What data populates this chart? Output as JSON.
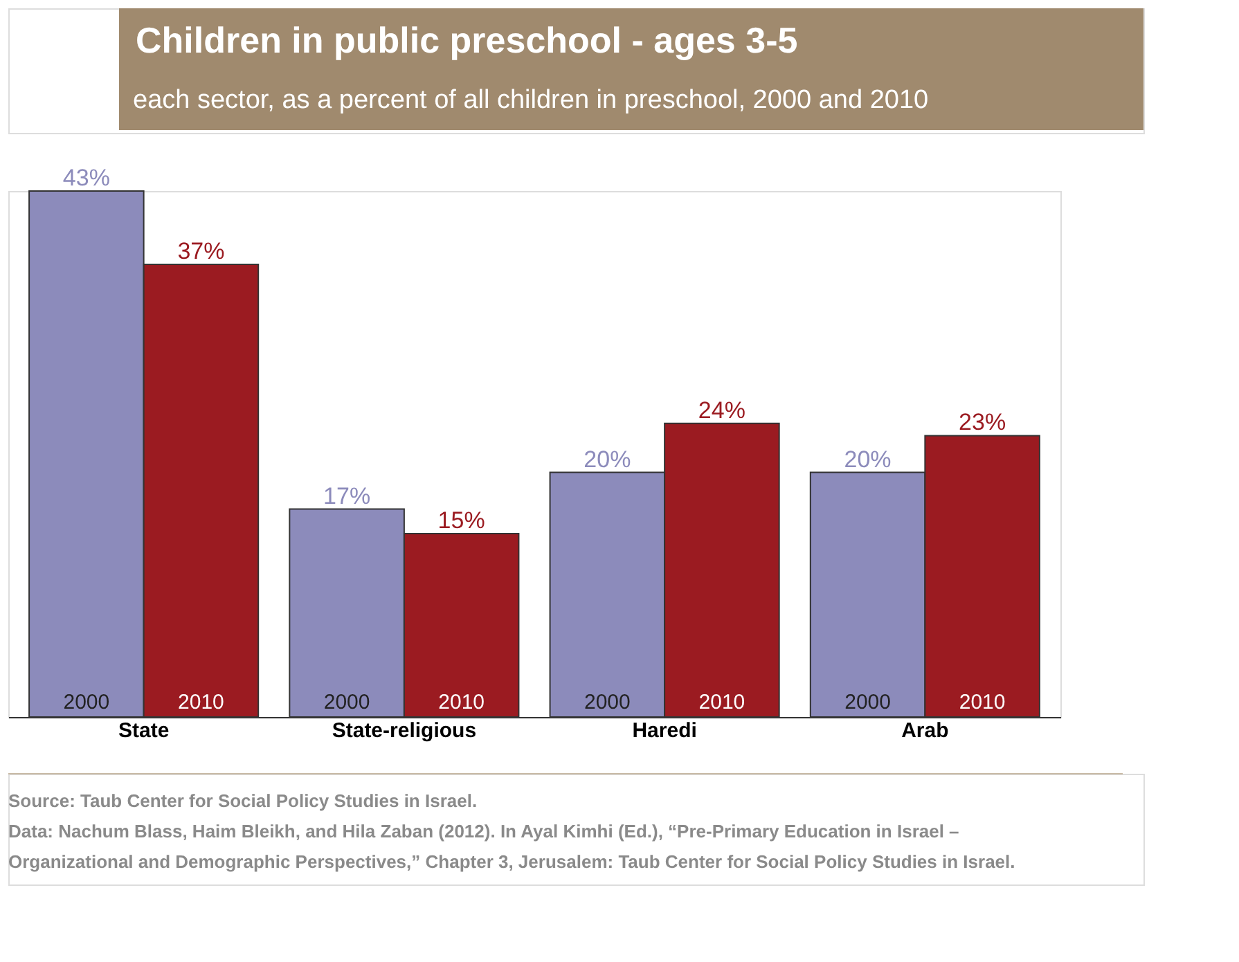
{
  "chart_data": {
    "type": "bar",
    "title": "Children in public preschool - ages 3-5",
    "subtitle": "each sector, as a percent of all children in preschool, 2000 and 2010",
    "categories": [
      "State",
      "State-religious",
      "Haredi",
      "Arab"
    ],
    "series": [
      {
        "name": "2000",
        "color": "#8c8bbb",
        "values": [
          43,
          17,
          20,
          20
        ],
        "value_labels": [
          "43%",
          "17%",
          "20%",
          "20%"
        ]
      },
      {
        "name": "2010",
        "color": "#9b1b21",
        "values": [
          37,
          15,
          24,
          23
        ],
        "value_labels": [
          "37%",
          "15%",
          "24%",
          "23%"
        ]
      }
    ],
    "tick_labels": "x",
    "legend": false,
    "grid": false,
    "annotations": [
      "Source: Taub Center for Social Policy Studies in Israel.",
      "Data: Nachum Blass, Haim Bleikh, and Hila Zaban (2012). In Ayal Kimhi (Ed.), “Pre-Primary Education in Israel –",
      "Organizational and Demographic Perspectives,” Chapter 3, Jerusalem: Taub Center for Social Policy Studies in Israel."
    ]
  }
}
